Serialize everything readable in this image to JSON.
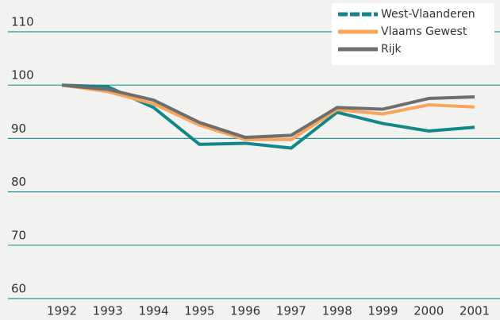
{
  "chart_data": {
    "type": "line",
    "categories": [
      "1992",
      "1993",
      "1994",
      "1995",
      "1996",
      "1997",
      "1998",
      "1999",
      "2000",
      "2001"
    ],
    "series": [
      {
        "name": "West-Vlaanderen",
        "color": "#12878a",
        "values": [
          100,
          99.7,
          95.8,
          88.9,
          89.1,
          88.2,
          94.9,
          92.8,
          91.4,
          92.1
        ]
      },
      {
        "name": "Vlaams Gewest",
        "color": "#f6a55a",
        "values": [
          100,
          98.8,
          96.5,
          92.5,
          89.8,
          89.8,
          95.4,
          94.6,
          96.3,
          95.9
        ]
      },
      {
        "name": "Rijk",
        "color": "#6e6e6e",
        "values": [
          100,
          99.2,
          97.2,
          93.0,
          90.2,
          90.6,
          95.8,
          95.5,
          97.5,
          97.8
        ]
      }
    ],
    "ylim": [
      60,
      110
    ],
    "yticks": [
      60,
      70,
      80,
      90,
      100,
      110
    ],
    "grid": true,
    "legend": "top-right"
  }
}
